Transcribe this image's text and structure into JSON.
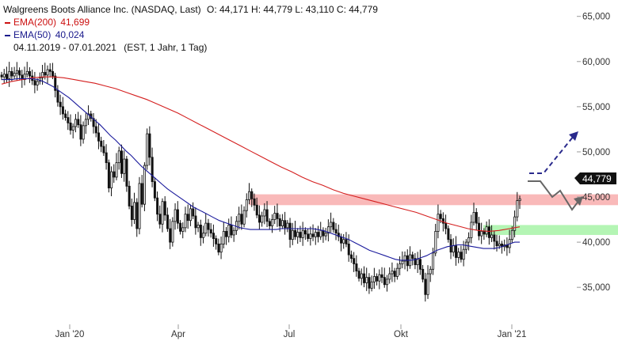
{
  "header": {
    "title": "Walgreens Boots Alliance Inc. (NASDAQ, Last)",
    "ohlc": "O: 44,171  H: 44,779  L: 43,110  C: 44,779",
    "ema200_label": "EMA(200)",
    "ema200_value": "41,699",
    "ema50_label": "EMA(50)",
    "ema50_value": "40,024",
    "range": "04.11.2019 - 07.01.2021",
    "settings": "(EST, 1 Jahr, 1 Tag)"
  },
  "chart_data": {
    "type": "candlestick",
    "xlabels": [
      "Jan '20",
      "Apr",
      "Jul",
      "Okt",
      "Jan '21"
    ],
    "ylabels": [
      "35,000",
      "40,000",
      "45,000",
      "50,000",
      "55,000",
      "60,000",
      "65,000"
    ],
    "ylim": [
      33,
      65.5
    ],
    "last_price_label": "44,779",
    "last_price": 44.779,
    "resistance_zone": [
      44.1,
      45.3
    ],
    "support_zone": [
      40.8,
      41.9
    ],
    "close_series": [
      58.3,
      58.6,
      58.1,
      58.9,
      58.4,
      58.7,
      59.0,
      58.5,
      58.0,
      58.6,
      58.9,
      58.4,
      57.9,
      57.4,
      57.8,
      58.2,
      58.8,
      58.5,
      59.1,
      58.9,
      58.4,
      56.8,
      55.5,
      55.0,
      54.2,
      53.8,
      53.2,
      52.4,
      52.8,
      53.6,
      53.0,
      51.4,
      52.9,
      53.6,
      54.2,
      53.7,
      52.8,
      52.1,
      51.2,
      50.6,
      49.9,
      48.8,
      46.0,
      47.8,
      47.2,
      48.8,
      50.1,
      47.6,
      49.2,
      46.2,
      44.0,
      42.5,
      44.4,
      41.5,
      46.5,
      44.2,
      48.5,
      52.0,
      49.4,
      46.7,
      44.9,
      43.1,
      42.0,
      44.5,
      43.0,
      41.5,
      40.0,
      42.3,
      43.6,
      42.1,
      41.2,
      41.6,
      43.1,
      42.4,
      43.7,
      42.9,
      41.6,
      41.9,
      40.5,
      41.0,
      42.1,
      41.4,
      41.0,
      40.4,
      39.8,
      38.9,
      39.8,
      41.2,
      40.6,
      41.9,
      40.8,
      41.3,
      42.3,
      43.1,
      42.0,
      43.5,
      44.7,
      45.6,
      44.8,
      44.1,
      43.0,
      42.2,
      42.9,
      43.6,
      42.3,
      41.8,
      42.5,
      43.2,
      42.6,
      41.8,
      42.4,
      41.6,
      42.1,
      40.3,
      41.3,
      40.6,
      41.1,
      40.5,
      41.3,
      40.9,
      40.4,
      40.9,
      40.6,
      41.1,
      40.6,
      41.3,
      40.7,
      41.0,
      41.7,
      42.2,
      41.4,
      41.0,
      40.6,
      39.9,
      40.3,
      39.8,
      38.6,
      38.2,
      37.6,
      36.8,
      36.0,
      36.5,
      35.5,
      36.1,
      34.9,
      35.6,
      36.2,
      35.7,
      36.4,
      36.1,
      35.3,
      35.9,
      36.5,
      36.8,
      36.2,
      37.1,
      37.6,
      37.9,
      38.5,
      37.4,
      38.6,
      38.2,
      37.5,
      38.1,
      37.0,
      35.9,
      34.2,
      36.5,
      37.0,
      38.8,
      41.2,
      43.1,
      42.6,
      42.1,
      41.5,
      40.3,
      38.9,
      39.6,
      38.3,
      38.9,
      38.1,
      39.2,
      40.0,
      40.5,
      42.2,
      43.3,
      42.1,
      40.7,
      41.2,
      40.9,
      41.7,
      40.5,
      40.8,
      40.1,
      39.6,
      39.8,
      39.5,
      39.7,
      39.4,
      40.3,
      41.3,
      42.8,
      44.6,
      44.8
    ],
    "ema50_series": [
      58.0,
      58.0,
      58.0,
      58.1,
      58.1,
      58.1,
      58.1,
      58.0,
      57.8,
      57.5,
      57.2,
      56.8,
      56.4,
      56.0,
      55.5,
      55.0,
      54.5,
      54.0,
      53.5,
      53.0,
      52.4,
      51.8,
      51.3,
      50.7,
      50.1,
      49.6,
      49.0,
      48.4,
      47.9,
      47.4,
      46.9,
      46.4,
      45.9,
      45.5,
      45.1,
      44.7,
      44.3,
      43.9,
      43.6,
      43.3,
      43.0,
      42.7,
      42.4,
      42.2,
      42.0,
      41.8,
      41.6,
      41.5,
      41.4,
      41.4,
      41.4,
      41.4,
      41.4,
      41.4,
      41.5,
      41.5,
      41.5,
      41.5,
      41.5,
      41.5,
      41.5,
      41.4,
      41.3,
      41.1,
      40.9,
      40.7,
      40.5,
      40.3,
      40.0,
      39.7,
      39.4,
      39.1,
      38.9,
      38.7,
      38.5,
      38.3,
      38.1,
      38.0,
      38.0,
      38.0,
      38.1,
      38.3,
      38.5,
      38.8,
      39.1,
      39.3,
      39.5,
      39.6,
      39.7,
      39.7,
      39.6,
      39.5,
      39.4,
      39.3,
      39.3,
      39.3,
      39.4,
      39.6,
      39.8,
      40.0,
      40.0
    ],
    "ema200_series": [
      57.5,
      57.8,
      58.0,
      58.2,
      58.3,
      58.3,
      58.2,
      58.0,
      57.8,
      57.6,
      57.3,
      57.0,
      56.6,
      56.2,
      55.8,
      55.3,
      54.8,
      54.3,
      53.7,
      53.1,
      52.5,
      51.9,
      51.3,
      50.7,
      50.1,
      49.5,
      48.9,
      48.3,
      47.8,
      47.2,
      46.7,
      46.3,
      45.8,
      45.4,
      45.1,
      44.8,
      44.5,
      44.2,
      43.9,
      43.6,
      43.3,
      42.9,
      42.5,
      42.1,
      41.8,
      41.5,
      41.3,
      41.2,
      41.3,
      41.5,
      41.7
    ]
  }
}
